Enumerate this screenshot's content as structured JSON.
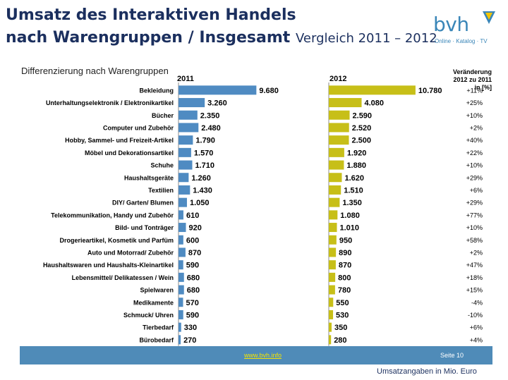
{
  "header": {
    "title_line1": "Umsatz des Interaktiven Handels",
    "title_line2": "nach Warengruppen / Insgesamt",
    "subtitle": "Vergleich 2011 – 2012"
  },
  "logo": {
    "name": "bvh",
    "tagline": "Online · Katalog · TV",
    "icon": "bvh-triangle-logo"
  },
  "chart_heading": "Differenzierung nach Warengruppen",
  "footer": {
    "link": "www.bvh.info",
    "page": "Seite 10",
    "unit_note": "Umsatzangaben in Mio. Euro"
  },
  "colors": {
    "bar_2011": "#4f8bc2",
    "bar_2012": "#c7bf18",
    "footer": "#4f8bb8",
    "title": "#1b2f5e"
  },
  "chart_data": {
    "type": "bar",
    "orientation": "horizontal",
    "title": "Differenzierung nach Warengruppen",
    "categories": [
      "Bekleidung",
      "Unterhaltungselektronik / Elektronikartikel",
      "Bücher",
      "Computer und Zubehör",
      "Hobby, Sammel- und Freizeit-Artikel",
      "Möbel und Dekorationsartikel",
      "Schuhe",
      "Haushaltsgeräte",
      "Textilien",
      "DIY/ Garten/ Blumen",
      "Telekommunikation, Handy und Zubehör",
      "Bild- und Tonträger",
      "Drogerieartikel, Kosmetik und Parfüm",
      "Auto und Motorrad/ Zubehör",
      "Haushaltswaren und Haushalts-Kleinartikel",
      "Lebensmittel/ Delikatessen / Wein",
      "Spielwaren",
      "Medikamente",
      "Schmuck/ Uhren",
      "Tierbedarf",
      "Bürobedarf"
    ],
    "series": [
      {
        "name": "2011",
        "values": [
          9680,
          3260,
          2350,
          2480,
          1790,
          1570,
          1710,
          1260,
          1430,
          1050,
          610,
          920,
          600,
          870,
          590,
          680,
          680,
          570,
          590,
          330,
          270
        ],
        "labels": [
          "9.680",
          "3.260",
          "2.350",
          "2.480",
          "1.790",
          "1.570",
          "1.710",
          "1.260",
          "1.430",
          "1.050",
          "610",
          "920",
          "600",
          "870",
          "590",
          "680",
          "680",
          "570",
          "590",
          "330",
          "270"
        ]
      },
      {
        "name": "2012",
        "values": [
          10780,
          4080,
          2590,
          2520,
          2500,
          1920,
          1880,
          1620,
          1510,
          1350,
          1080,
          1010,
          950,
          890,
          870,
          800,
          780,
          550,
          530,
          350,
          280
        ],
        "labels": [
          "10.780",
          "4.080",
          "2.590",
          "2.520",
          "2.500",
          "1.920",
          "1.880",
          "1.620",
          "1.510",
          "1.350",
          "1.080",
          "1.010",
          "950",
          "890",
          "870",
          "800",
          "780",
          "550",
          "530",
          "350",
          "280"
        ]
      }
    ],
    "change": {
      "header": [
        "Veränderung",
        "2012 zu 2011",
        "in [%]"
      ],
      "values": [
        "+11%",
        "+25%",
        "+10%",
        "+2%",
        "+40%",
        "+22%",
        "+10%",
        "+29%",
        "+6%",
        "+29%",
        "+77%",
        "+10%",
        "+58%",
        "+2%",
        "+47%",
        "+18%",
        "+15%",
        "-4%",
        "-10%",
        "+6%",
        "+4%"
      ]
    },
    "xlim": [
      0,
      11000
    ],
    "grid": false,
    "legend": "none"
  }
}
